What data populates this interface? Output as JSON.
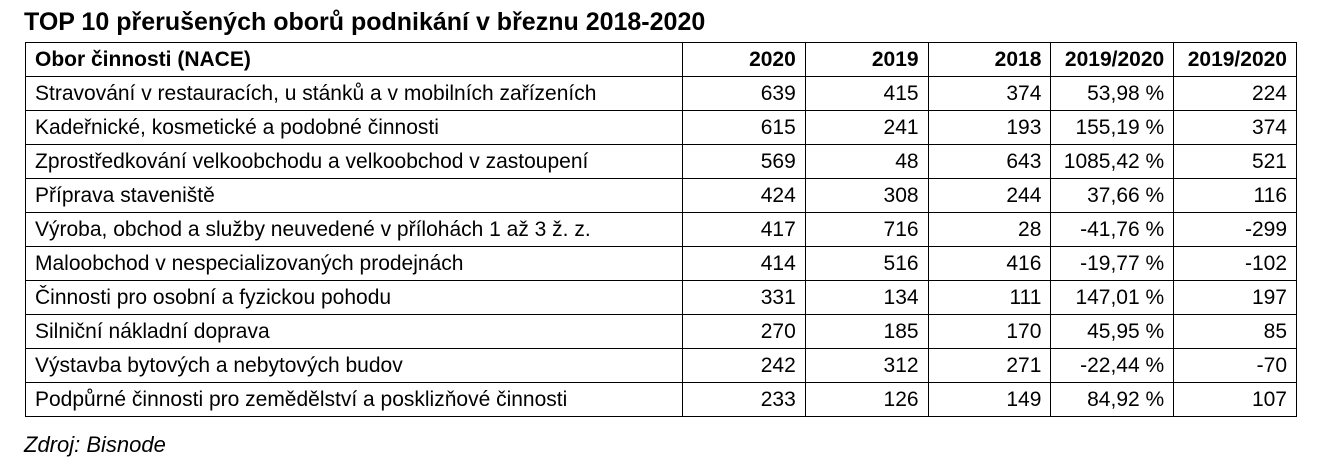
{
  "title": "TOP 10 přerušených oborů podnikání v březnu 2018-2020",
  "table": {
    "headers": [
      "Obor činnosti (NACE)",
      "2020",
      "2019",
      "2018",
      "2019/2020",
      "2019/2020"
    ],
    "rows": [
      [
        "Stravování v restauracích, u stánků a v mobilních zařízeních",
        "639",
        "415",
        "374",
        "53,98 %",
        "224"
      ],
      [
        "Kadeřnické, kosmetické a podobné činnosti",
        "615",
        "241",
        "193",
        "155,19 %",
        "374"
      ],
      [
        "Zprostředkování velkoobchodu a velkoobchod v zastoupení",
        "569",
        "48",
        "643",
        "1085,42 %",
        "521"
      ],
      [
        "Příprava staveniště",
        "424",
        "308",
        "244",
        "37,66 %",
        "116"
      ],
      [
        "Výroba, obchod a služby neuvedené v přílohách 1 až 3 ž. z.",
        "417",
        "716",
        "28",
        "-41,76 %",
        "-299"
      ],
      [
        "Maloobchod v nespecializovaných prodejnách",
        "414",
        "516",
        "416",
        "-19,77 %",
        "-102"
      ],
      [
        "Činnosti pro osobní a fyzickou pohodu",
        "331",
        "134",
        "111",
        "147,01 %",
        "197"
      ],
      [
        "Silniční nákladní doprava",
        "270",
        "185",
        "170",
        "45,95 %",
        "85"
      ],
      [
        "Výstavba bytových a nebytových budov",
        "242",
        "312",
        "271",
        "-22,44 %",
        "-70"
      ],
      [
        "Podpůrné činnosti pro zemědělství a posklizňové činnosti",
        "233",
        "126",
        "149",
        "84,92 %",
        "107"
      ]
    ]
  },
  "source": "Zdroj: Bisnode"
}
